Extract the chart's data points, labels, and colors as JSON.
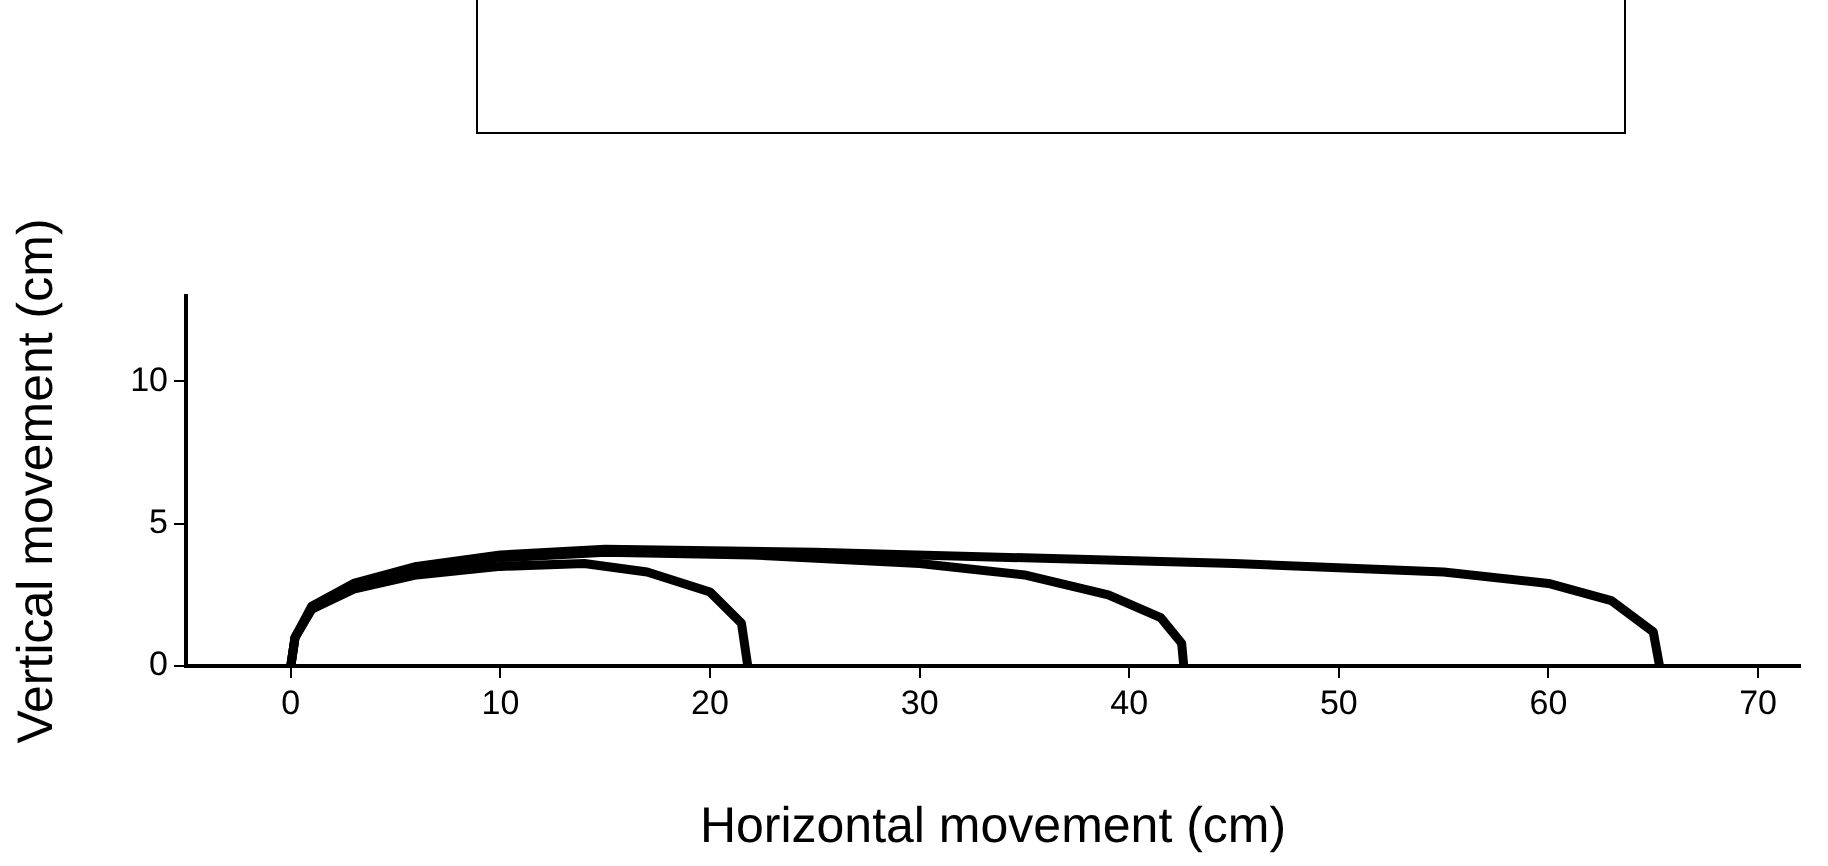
{
  "chart_data": {
    "type": "line",
    "xlabel": "Horizontal movement (cm)",
    "ylabel": "Vertical movement (cm)",
    "xlim": [
      -5,
      72
    ],
    "ylim": [
      0,
      13
    ],
    "xticks": [
      0,
      10,
      20,
      30,
      40,
      50,
      60,
      70
    ],
    "yticks": [
      0,
      5,
      10
    ],
    "grid": false,
    "legend": false,
    "marker": "none",
    "line_style": "solid",
    "series": [
      {
        "color": "#000000",
        "x": [
          0,
          0.2,
          1,
          3,
          6,
          10,
          14,
          17,
          20,
          21.5,
          21.8
        ],
        "values": [
          0,
          1,
          2,
          2.7,
          3.2,
          3.5,
          3.6,
          3.3,
          2.6,
          1.5,
          0
        ]
      },
      {
        "color": "#000000",
        "x": [
          0,
          0.2,
          1,
          3,
          6,
          10,
          15,
          22,
          30,
          35,
          39,
          41.5,
          42.5,
          42.6
        ],
        "values": [
          0,
          1,
          2,
          2.8,
          3.4,
          3.8,
          4.0,
          3.9,
          3.6,
          3.2,
          2.5,
          1.7,
          0.8,
          0
        ]
      },
      {
        "color": "#000000",
        "x": [
          0,
          0.2,
          1,
          3,
          6,
          10,
          15,
          25,
          35,
          45,
          55,
          60,
          63,
          65,
          65.3
        ],
        "values": [
          0,
          1,
          2.1,
          2.9,
          3.5,
          3.9,
          4.1,
          4.0,
          3.8,
          3.6,
          3.3,
          2.9,
          2.3,
          1.2,
          0
        ]
      }
    ]
  }
}
